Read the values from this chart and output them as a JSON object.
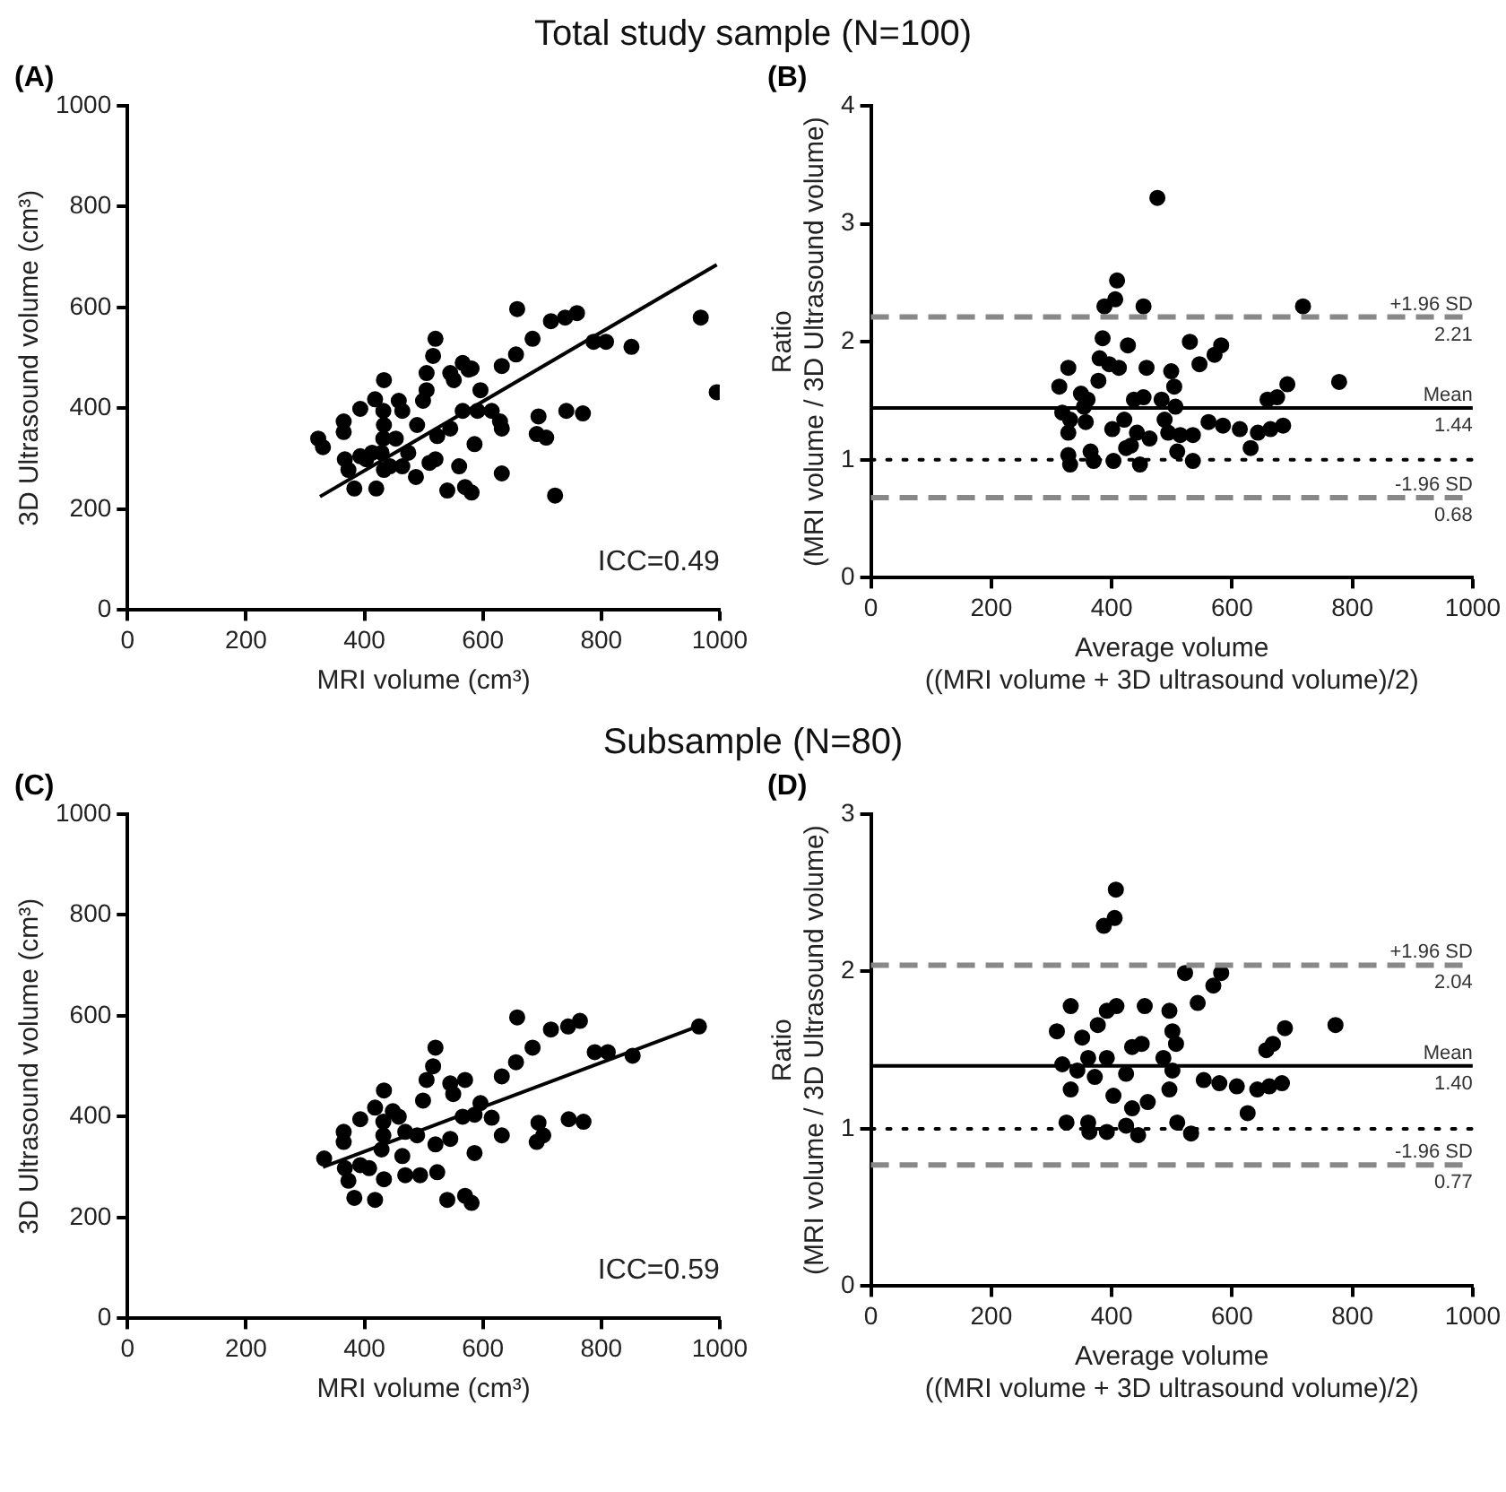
{
  "chart_data": [
    {
      "type": "scatter",
      "title": "Total study sample (N=100)",
      "xlabel": "MRI volume (cm³)",
      "ylabel": "3D Ultrasound volume (cm³)",
      "annotations": [
        "(A)",
        "ICC=0.49"
      ],
      "xlim": [
        0,
        1000
      ],
      "xticks": [
        0,
        200,
        400,
        600,
        800,
        1000
      ],
      "ylim": [
        0,
        1000
      ],
      "yticks": [
        0,
        200,
        400,
        600,
        800,
        1000
      ],
      "grid": false,
      "legend": false,
      "marker": "circle",
      "series": [
        {
          "type": "scatter",
          "color": "#000000",
          "x": [
            322,
            330,
            365,
            365,
            393,
            367,
            373,
            383,
            393,
            403,
            413,
            420,
            418,
            433,
            432,
            433,
            432,
            429,
            433,
            443,
            458,
            464,
            453,
            464,
            474,
            487,
            489,
            499,
            505,
            520,
            516,
            505,
            510,
            520,
            523,
            545,
            551,
            566,
            576,
            581,
            545,
            540,
            560,
            570,
            581,
            586,
            566,
            596,
            591,
            615,
            629,
            632,
            632,
            632,
            658,
            656,
            684,
            694,
            691,
            707,
            715,
            722,
            739,
            759,
            741,
            769,
            787,
            808,
            851,
            968,
            995
          ],
          "values": [
            340,
            323,
            374,
            353,
            399,
            299,
            278,
            241,
            305,
            299,
            312,
            241,
            418,
            456,
            395,
            367,
            340,
            312,
            278,
            285,
            415,
            395,
            340,
            285,
            312,
            264,
            367,
            415,
            436,
            538,
            504,
            470,
            292,
            299,
            345,
            470,
            456,
            490,
            477,
            479,
            360,
            237,
            285,
            244,
            233,
            329,
            395,
            436,
            395,
            395,
            374,
            360,
            484,
            271,
            597,
            507,
            538,
            384,
            349,
            342,
            573,
            227,
            580,
            589,
            395,
            390,
            532,
            532,
            522,
            580,
            432
          ]
        },
        {
          "type": "line",
          "marker": "none",
          "color": "#000000",
          "x": [
            325,
            995
          ],
          "values": [
            225,
            685
          ]
        }
      ]
    },
    {
      "type": "scatter",
      "xlabel": "Average volume\n((MRI volume + 3D ultrasound volume)/2)",
      "ylabel": "Ratio\n(MRI volume / 3D Ultrasound volume)",
      "annotations": [
        "(B)"
      ],
      "xlim": [
        0,
        1000
      ],
      "xticks": [
        0,
        200,
        400,
        600,
        800,
        1000
      ],
      "ylim": [
        0,
        4
      ],
      "yticks": [
        0,
        1,
        2,
        3,
        4
      ],
      "grid": false,
      "legend": false,
      "marker": "circle",
      "series": [
        {
          "type": "scatter",
          "color": "#000000",
          "x": [
            313,
            328,
            318,
            328,
            331,
            328,
            331,
            349,
            354,
            357,
            360,
            365,
            370,
            378,
            380,
            385,
            388,
            396,
            401,
            403,
            406,
            409,
            412,
            421,
            424,
            427,
            432,
            437,
            442,
            447,
            453,
            453,
            458,
            463,
            476,
            483,
            488,
            494,
            499,
            504,
            506,
            509,
            514,
            530,
            535,
            535,
            546,
            561,
            571,
            582,
            585,
            613,
            631,
            643,
            659,
            664,
            675,
            685,
            692,
            718,
            778
          ],
          "values": [
            1.62,
            1.78,
            1.4,
            1.23,
            1.34,
            1.04,
            0.96,
            1.56,
            1.45,
            1.32,
            1.51,
            1.07,
            0.99,
            1.67,
            1.86,
            2.03,
            2.3,
            1.81,
            1.26,
            0.99,
            2.36,
            2.52,
            1.78,
            1.34,
            1.1,
            1.97,
            1.12,
            1.51,
            1.23,
            0.96,
            2.3,
            1.53,
            1.78,
            1.18,
            3.22,
            1.51,
            1.34,
            1.23,
            1.75,
            1.62,
            1.45,
            1.07,
            1.21,
            2,
            1.21,
            0.99,
            1.81,
            1.32,
            1.89,
            1.97,
            1.29,
            1.26,
            1.1,
            1.23,
            1.51,
            1.26,
            1.53,
            1.29,
            1.64,
            2.3,
            1.66
          ]
        }
      ],
      "ref_lines": [
        {
          "axis": "y",
          "value": 2.21,
          "label": "+1.96 SD\n2.21",
          "color": "#888888",
          "line_style": "dashed"
        },
        {
          "axis": "y",
          "value": 1.44,
          "label": "Mean\n1.44",
          "color": "#000000",
          "line_style": "solid"
        },
        {
          "axis": "y",
          "value": 1,
          "color": "#000000",
          "line_style": "dotted"
        },
        {
          "axis": "y",
          "value": 0.68,
          "label": "-1.96 SD\n0.68",
          "color": "#888888",
          "line_style": "dashed"
        }
      ]
    },
    {
      "type": "scatter",
      "title": "Subsample (N=80)",
      "xlabel": "MRI volume (cm³)",
      "ylabel": "3D Ultrasound volume (cm³)",
      "annotations": [
        "(C)",
        "ICC=0.59"
      ],
      "xlim": [
        0,
        1000
      ],
      "xticks": [
        0,
        200,
        400,
        600,
        800,
        1000
      ],
      "ylim": [
        0,
        1000
      ],
      "yticks": [
        0,
        200,
        400,
        600,
        800,
        1000
      ],
      "grid": false,
      "legend": false,
      "marker": "circle",
      "series": [
        {
          "type": "scatter",
          "color": "#000000",
          "x": [
            332,
            365,
            365,
            393,
            367,
            373,
            383,
            393,
            408,
            418,
            418,
            433,
            432,
            432,
            429,
            433,
            448,
            458,
            469,
            464,
            469,
            489,
            494,
            499,
            505,
            516,
            520,
            520,
            523,
            545,
            550,
            570,
            545,
            540,
            570,
            581,
            586,
            566,
            596,
            586,
            615,
            632,
            632,
            658,
            656,
            684,
            694,
            691,
            702,
            715,
            744,
            764,
            745,
            770,
            789,
            811,
            853,
            965
          ],
          "values": [
            317,
            370,
            350,
            395,
            298,
            273,
            239,
            304,
            298,
            235,
            418,
            452,
            390,
            363,
            335,
            276,
            411,
            400,
            370,
            322,
            284,
            363,
            284,
            432,
            473,
            500,
            537,
            345,
            290,
            466,
            445,
            473,
            356,
            235,
            243,
            229,
            328,
            400,
            427,
            404,
            398,
            363,
            480,
            597,
            508,
            537,
            388,
            350,
            363,
            573,
            579,
            590,
            395,
            390,
            528,
            528,
            521,
            579
          ]
        },
        {
          "type": "line",
          "marker": "none",
          "color": "#000000",
          "x": [
            330,
            965
          ],
          "values": [
            300,
            580
          ]
        }
      ]
    },
    {
      "type": "scatter",
      "xlabel": "Average volume\n((MRI volume + 3D ultrasound volume)/2)",
      "ylabel": "Ratio\n(MRI volume / 3D Ultrasound volume)",
      "annotations": [
        "(D)"
      ],
      "xlim": [
        0,
        1000
      ],
      "xticks": [
        0,
        200,
        400,
        600,
        800,
        1000
      ],
      "ylim": [
        0,
        3
      ],
      "yticks": [
        0,
        1,
        2,
        3
      ],
      "grid": false,
      "legend": false,
      "marker": "circle",
      "series": [
        {
          "type": "scatter",
          "color": "#000000",
          "x": [
            309,
            332,
            318,
            332,
            343,
            325,
            363,
            351,
            361,
            372,
            377,
            361,
            392,
            387,
            405,
            407,
            392,
            408,
            392,
            403,
            424,
            424,
            434,
            444,
            434,
            455,
            450,
            460,
            486,
            496,
            501,
            507,
            496,
            509,
            501,
            522,
            532,
            543,
            553,
            569,
            582,
            579,
            608,
            626,
            642,
            657,
            668,
            662,
            683,
            688,
            772
          ],
          "values": [
            1.62,
            1.78,
            1.41,
            1.25,
            1.37,
            1.04,
            0.98,
            1.58,
            1.45,
            1.33,
            1.66,
            1.04,
            0.98,
            2.29,
            2.34,
            2.52,
            1.75,
            1.78,
            1.45,
            1.21,
            1.35,
            1.02,
            1.13,
            0.96,
            1.52,
            1.78,
            1.54,
            1.17,
            1.45,
            1.75,
            1.62,
            1.54,
            1.25,
            1.04,
            1.37,
            1.99,
            0.97,
            1.8,
            1.31,
            1.91,
            1.99,
            1.29,
            1.27,
            1.1,
            1.25,
            1.5,
            1.54,
            1.27,
            1.29,
            1.64,
            1.66
          ]
        }
      ],
      "ref_lines": [
        {
          "axis": "y",
          "value": 2.04,
          "label": "+1.96 SD\n2.04",
          "color": "#888888",
          "line_style": "dashed"
        },
        {
          "axis": "y",
          "value": 1.4,
          "label": "Mean\n1.40",
          "color": "#000000",
          "line_style": "solid"
        },
        {
          "axis": "y",
          "value": 1,
          "color": "#000000",
          "line_style": "dotted"
        },
        {
          "axis": "y",
          "value": 0.77,
          "label": "-1.96 SD\n0.77",
          "color": "#888888",
          "line_style": "dashed"
        }
      ]
    }
  ]
}
